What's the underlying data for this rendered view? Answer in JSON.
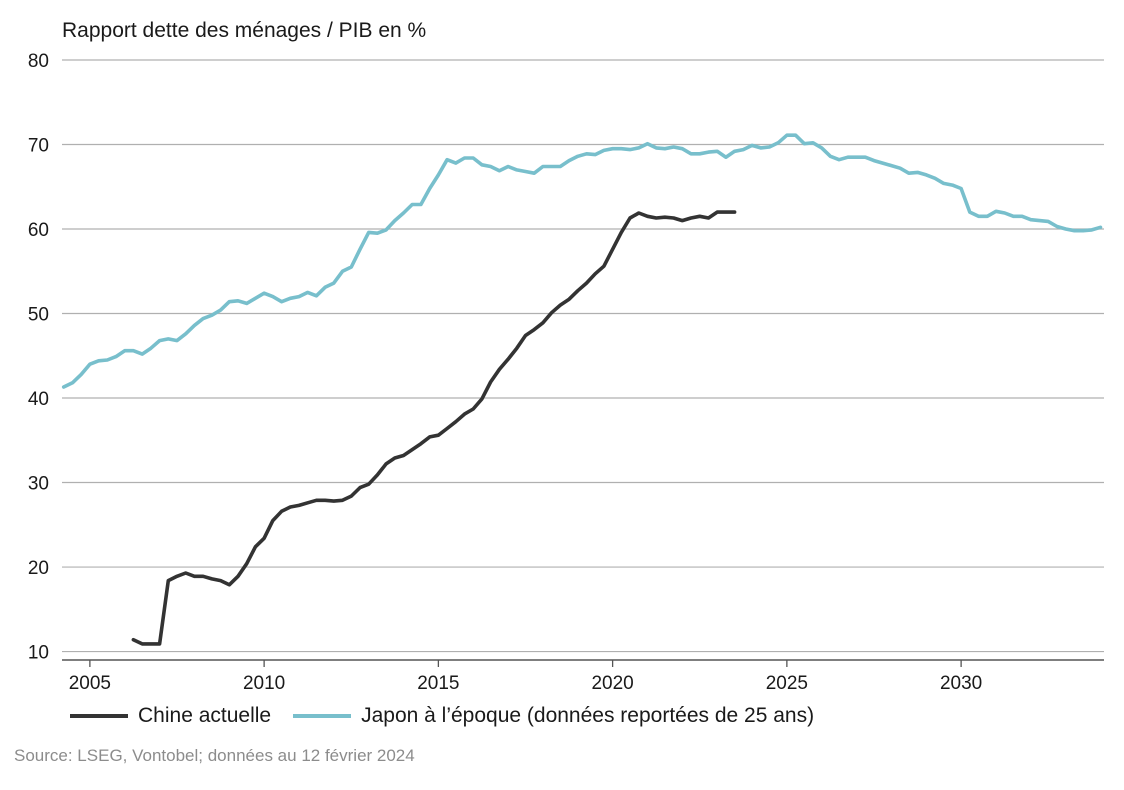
{
  "chart_data": {
    "type": "line",
    "ylabel": "Rapport dette des ménages / PIB en %",
    "xlabel": "",
    "xlim": [
      2004.2,
      2034.1
    ],
    "ylim": [
      9,
      80
    ],
    "yticks": [
      10,
      20,
      30,
      40,
      50,
      60,
      70,
      80
    ],
    "xticks": [
      2005,
      2010,
      2015,
      2020,
      2025,
      2030
    ],
    "grid": "horizontal",
    "legend_position": "bottom",
    "series": [
      {
        "name": "Chine actuelle",
        "color": "#333333",
        "x": [
          2006.25,
          2006.5,
          2006.75,
          2007.0,
          2007.25,
          2007.5,
          2007.75,
          2008.0,
          2008.25,
          2008.5,
          2008.75,
          2009.0,
          2009.25,
          2009.5,
          2009.75,
          2010.0,
          2010.25,
          2010.5,
          2010.75,
          2011.0,
          2011.25,
          2011.5,
          2011.75,
          2012.0,
          2012.25,
          2012.5,
          2012.75,
          2013.0,
          2013.25,
          2013.5,
          2013.75,
          2014.0,
          2014.25,
          2014.5,
          2014.75,
          2015.0,
          2015.25,
          2015.5,
          2015.75,
          2016.0,
          2016.25,
          2016.5,
          2016.75,
          2017.0,
          2017.25,
          2017.5,
          2017.75,
          2018.0,
          2018.25,
          2018.5,
          2018.75,
          2019.0,
          2019.25,
          2019.5,
          2019.75,
          2020.0,
          2020.25,
          2020.5,
          2020.75,
          2021.0,
          2021.25,
          2021.5,
          2021.75,
          2022.0,
          2022.25,
          2022.5,
          2022.75,
          2023.0,
          2023.25,
          2023.5
        ],
        "values": [
          11.4,
          10.9,
          10.9,
          10.9,
          18.4,
          18.9,
          19.3,
          18.9,
          18.9,
          18.6,
          18.4,
          17.9,
          18.9,
          20.4,
          22.4,
          23.4,
          25.5,
          26.6,
          27.1,
          27.3,
          27.6,
          27.9,
          27.9,
          27.8,
          27.9,
          28.4,
          29.4,
          29.8,
          30.9,
          32.2,
          32.9,
          33.2,
          33.9,
          34.6,
          35.4,
          35.6,
          36.4,
          37.2,
          38.1,
          38.7,
          39.9,
          41.9,
          43.4,
          44.6,
          45.9,
          47.4,
          48.1,
          48.9,
          50.1,
          51.0,
          51.7,
          52.7,
          53.6,
          54.7,
          55.6,
          57.6,
          59.6,
          61.3,
          61.9,
          61.5,
          61.3,
          61.4,
          61.3,
          61.0,
          61.3,
          61.5,
          61.3,
          62.0,
          62.0,
          62.0
        ]
      },
      {
        "name": "Japon à l’époque (données reportées de 25 ans)",
        "color": "#78bfcc",
        "x": [
          2004.25,
          2004.5,
          2004.75,
          2005.0,
          2005.25,
          2005.5,
          2005.75,
          2006.0,
          2006.25,
          2006.5,
          2006.75,
          2007.0,
          2007.25,
          2007.5,
          2007.75,
          2008.0,
          2008.25,
          2008.5,
          2008.75,
          2009.0,
          2009.25,
          2009.5,
          2009.75,
          2010.0,
          2010.25,
          2010.5,
          2010.75,
          2011.0,
          2011.25,
          2011.5,
          2011.75,
          2012.0,
          2012.25,
          2012.5,
          2012.75,
          2013.0,
          2013.25,
          2013.5,
          2013.75,
          2014.0,
          2014.25,
          2014.5,
          2014.75,
          2015.0,
          2015.25,
          2015.5,
          2015.75,
          2016.0,
          2016.25,
          2016.5,
          2016.75,
          2017.0,
          2017.25,
          2017.5,
          2017.75,
          2018.0,
          2018.25,
          2018.5,
          2018.75,
          2019.0,
          2019.25,
          2019.5,
          2019.75,
          2020.0,
          2020.25,
          2020.5,
          2020.75,
          2021.0,
          2021.25,
          2021.5,
          2021.75,
          2022.0,
          2022.25,
          2022.5,
          2022.75,
          2023.0,
          2023.25,
          2023.5,
          2023.75,
          2024.0,
          2024.25,
          2024.5,
          2024.75,
          2025.0,
          2025.25,
          2025.5,
          2025.75,
          2026.0,
          2026.25,
          2026.5,
          2026.75,
          2027.0,
          2027.25,
          2027.5,
          2027.75,
          2028.0,
          2028.25,
          2028.5,
          2028.75,
          2029.0,
          2029.25,
          2029.5,
          2029.75,
          2030.0,
          2030.25,
          2030.5,
          2030.75,
          2031.0,
          2031.25,
          2031.5,
          2031.75,
          2032.0,
          2032.25,
          2032.5,
          2032.75,
          2033.0,
          2033.25,
          2033.5,
          2033.75,
          2034.0
        ],
        "values": [
          41.3,
          41.8,
          42.8,
          44.0,
          44.4,
          44.5,
          44.9,
          45.6,
          45.6,
          45.2,
          45.9,
          46.8,
          47.0,
          46.8,
          47.6,
          48.6,
          49.4,
          49.8,
          50.4,
          51.4,
          51.5,
          51.2,
          51.8,
          52.4,
          52.0,
          51.4,
          51.8,
          52.0,
          52.5,
          52.1,
          53.1,
          53.6,
          55.0,
          55.5,
          57.6,
          59.6,
          59.5,
          59.9,
          61.0,
          61.9,
          62.9,
          62.9,
          64.8,
          66.4,
          68.2,
          67.8,
          68.4,
          68.4,
          67.6,
          67.4,
          66.9,
          67.4,
          67.0,
          66.8,
          66.6,
          67.4,
          67.4,
          67.4,
          68.1,
          68.6,
          68.9,
          68.8,
          69.3,
          69.5,
          69.5,
          69.4,
          69.6,
          70.1,
          69.6,
          69.5,
          69.7,
          69.5,
          68.9,
          68.9,
          69.1,
          69.2,
          68.5,
          69.2,
          69.4,
          69.9,
          69.6,
          69.7,
          70.2,
          71.1,
          71.1,
          70.1,
          70.2,
          69.6,
          68.6,
          68.2,
          68.5,
          68.5,
          68.5,
          68.1,
          67.8,
          67.5,
          67.2,
          66.6,
          66.7,
          66.4,
          66.0,
          65.4,
          65.2,
          64.8,
          62.0,
          61.5,
          61.5,
          62.1,
          61.9,
          61.5,
          61.5,
          61.1,
          61.0,
          60.9,
          60.3,
          60.0,
          59.8,
          59.8,
          59.9,
          60.2
        ]
      }
    ]
  },
  "source": "Source: LSEG, Vontobel; données au 12 février 2024"
}
